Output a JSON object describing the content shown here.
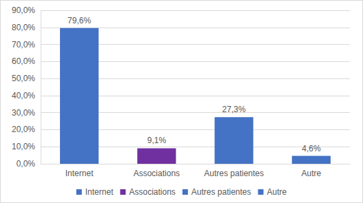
{
  "chart_data": {
    "type": "bar",
    "categories": [
      "Internet",
      "Associations",
      "Autres patientes",
      "Autre"
    ],
    "values": [
      79.6,
      9.1,
      27.3,
      4.6
    ],
    "value_labels": [
      "79,6%",
      "9,1%",
      "27,3%",
      "4,6%"
    ],
    "colors": [
      "#4472c4",
      "#7030a0",
      "#4472c4",
      "#4472c4"
    ],
    "ylim": [
      0,
      90
    ],
    "yticks": [
      {
        "value": 0,
        "label": "0,0%"
      },
      {
        "value": 10,
        "label": "10,0%"
      },
      {
        "value": 20,
        "label": "20,0%"
      },
      {
        "value": 30,
        "label": "30,0%"
      },
      {
        "value": 40,
        "label": "40,0%"
      },
      {
        "value": 50,
        "label": "50,0%"
      },
      {
        "value": 60,
        "label": "60,0%"
      },
      {
        "value": 70,
        "label": "70,0%"
      },
      {
        "value": 80,
        "label": "80,0%"
      },
      {
        "value": 90,
        "label": "90,0%"
      }
    ],
    "grid": true,
    "data_labels": true,
    "legend": "bottom"
  }
}
